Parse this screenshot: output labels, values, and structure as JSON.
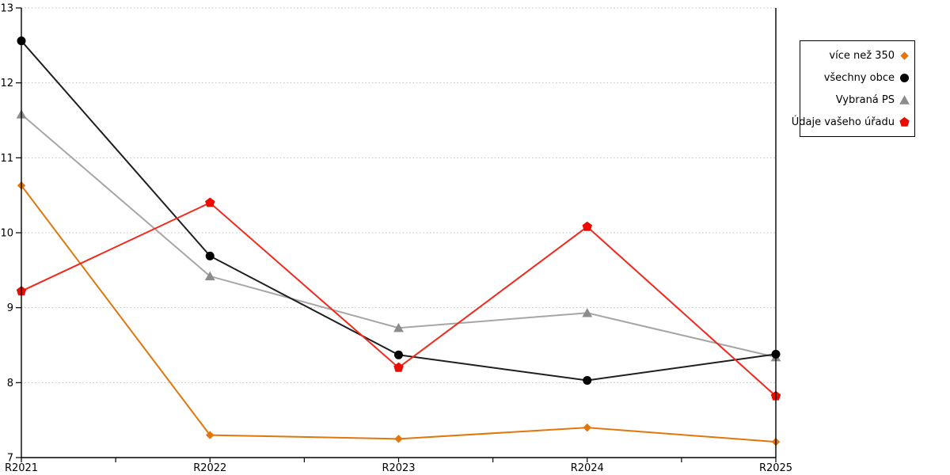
{
  "chart_data": {
    "type": "line",
    "title": "",
    "xlabel": "",
    "ylabel": "",
    "categories": [
      "R2021",
      "R2022",
      "R2023",
      "R2024",
      "R2025"
    ],
    "series": [
      {
        "name": "více než 350",
        "marker": "diamond",
        "line_color": "#e0760c",
        "marker_color": "#e0760c",
        "z": 1,
        "values": [
          10.63,
          7.3,
          7.25,
          7.4,
          7.21
        ]
      },
      {
        "name": "všechny obce",
        "marker": "circle",
        "line_color": "#1f1f1f",
        "marker_color": "#000000",
        "z": 3,
        "values": [
          12.56,
          9.69,
          8.37,
          8.03,
          8.38
        ]
      },
      {
        "name": "Vybraná PS",
        "marker": "triangle",
        "line_color": "#a6a6a6",
        "marker_color": "#8c8c8c",
        "z": 2,
        "values": [
          11.58,
          9.42,
          8.73,
          8.93,
          8.34
        ]
      },
      {
        "name": "Údaje vašeho úřadu",
        "marker": "pentagon",
        "line_color": "#f3281c",
        "marker_color": "#e90d00",
        "z": 4,
        "values": [
          9.22,
          10.4,
          8.2,
          10.08,
          7.82
        ]
      }
    ],
    "ylim": [
      7,
      13
    ],
    "y_ticks": [
      7,
      8,
      9,
      10,
      11,
      12,
      13
    ],
    "grid": "horizontal-dotted",
    "legend_position": "outside-top-right"
  },
  "colors": {
    "background": "#ffffff",
    "axis": "#000000",
    "grid": "#bfbfbf",
    "legend_border": "#000000",
    "label_text": "#000000"
  }
}
